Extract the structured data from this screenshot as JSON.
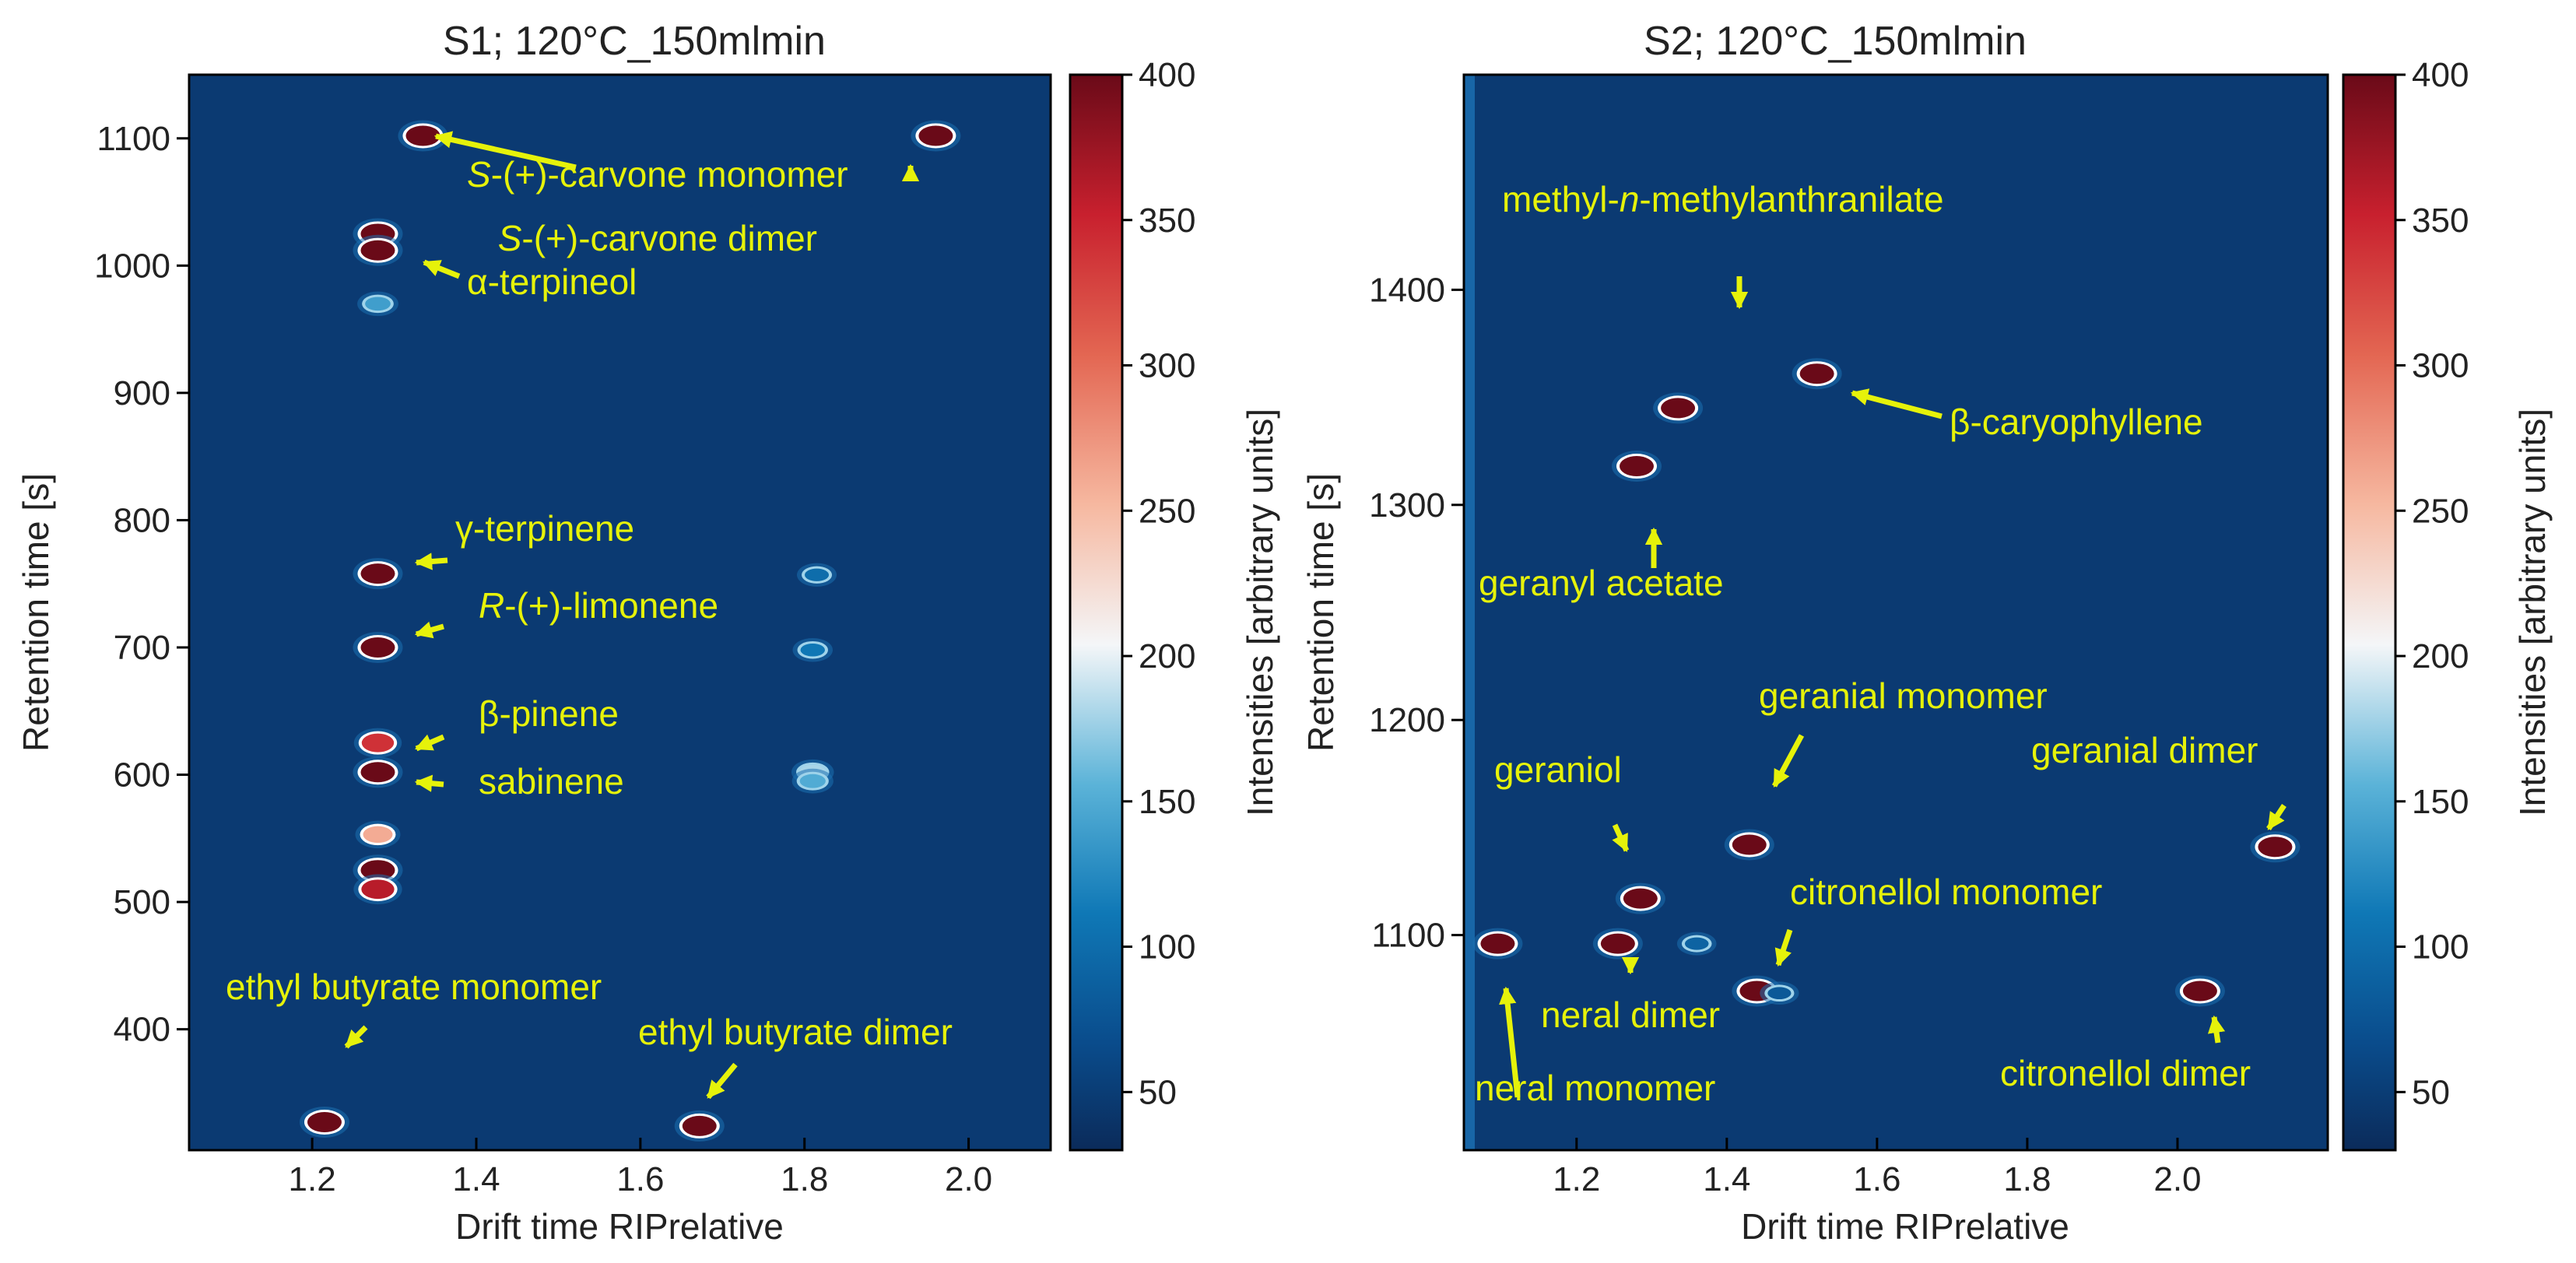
{
  "chart_data": [
    {
      "type": "heatmap",
      "title": "S1; 120°C_150mlmin",
      "xlabel": "Drift time RIPrelative",
      "ylabel": "Retention time [s]",
      "xlim": [
        1.05,
        2.1
      ],
      "ylim": [
        305,
        1150
      ],
      "xticks": [
        "1.2",
        "1.4",
        "1.6",
        "1.8",
        "2.0"
      ],
      "yticks": [
        "400",
        "500",
        "600",
        "700",
        "800",
        "900",
        "1000",
        "1100"
      ],
      "colorbar": {
        "label": "Intensities [arbitrary units]",
        "range": [
          30,
          400
        ],
        "ticks": [
          "50",
          "100",
          "150",
          "200",
          "250",
          "300",
          "350",
          "400"
        ]
      },
      "peaks": [
        {
          "x": 1.335,
          "y": 1102,
          "intensity": 400
        },
        {
          "x": 1.96,
          "y": 1102,
          "intensity": 400
        },
        {
          "x": 1.28,
          "y": 1025,
          "intensity": 400
        },
        {
          "x": 1.28,
          "y": 1012,
          "intensity": 400
        },
        {
          "x": 1.28,
          "y": 970,
          "intensity": 140
        },
        {
          "x": 1.28,
          "y": 758,
          "intensity": 400
        },
        {
          "x": 1.28,
          "y": 700,
          "intensity": 400
        },
        {
          "x": 1.28,
          "y": 625,
          "intensity": 340
        },
        {
          "x": 1.28,
          "y": 602,
          "intensity": 400
        },
        {
          "x": 1.28,
          "y": 553,
          "intensity": 260
        },
        {
          "x": 1.28,
          "y": 525,
          "intensity": 400
        },
        {
          "x": 1.28,
          "y": 510,
          "intensity": 360
        },
        {
          "x": 1.215,
          "y": 327,
          "intensity": 400
        },
        {
          "x": 1.672,
          "y": 324,
          "intensity": 400
        },
        {
          "x": 1.81,
          "y": 602,
          "intensity": 180
        },
        {
          "x": 1.81,
          "y": 595,
          "intensity": 150
        },
        {
          "x": 1.81,
          "y": 698,
          "intensity": 110
        },
        {
          "x": 1.815,
          "y": 757,
          "intensity": 100
        }
      ],
      "annotations": [
        {
          "prefix": "S",
          "text": "-(+)-carvone monomer",
          "x": 1.335,
          "y": 1102
        },
        {
          "prefix": "S",
          "text": "-(+)-carvone dimer",
          "x": 1.96,
          "y": 1102
        },
        {
          "prefix": "",
          "text": "α-terpineol",
          "x": 1.28,
          "y": 1012
        },
        {
          "prefix": "",
          "text": "γ-terpinene",
          "x": 1.28,
          "y": 758
        },
        {
          "prefix": "R",
          "text": "-(+)-limonene",
          "x": 1.28,
          "y": 700
        },
        {
          "prefix": "",
          "text": "β-pinene",
          "x": 1.28,
          "y": 625
        },
        {
          "prefix": "",
          "text": "sabinene",
          "x": 1.28,
          "y": 602
        },
        {
          "prefix": "",
          "text": "ethyl butyrate monomer",
          "x": 1.215,
          "y": 327
        },
        {
          "prefix": "",
          "text": "ethyl butyrate dimer",
          "x": 1.672,
          "y": 324
        }
      ]
    },
    {
      "type": "heatmap",
      "title": "S2; 120°C_150mlmin",
      "xlabel": "Drift time RIPrelative",
      "ylabel": "Retention time [s]",
      "xlim": [
        1.05,
        2.2
      ],
      "ylim": [
        1000,
        1500
      ],
      "xticks": [
        "1.2",
        "1.4",
        "1.6",
        "1.8",
        "2.0"
      ],
      "yticks": [
        "1100",
        "1200",
        "1300",
        "1400"
      ],
      "colorbar": {
        "label": "Intensities [arbitrary units]",
        "range": [
          30,
          400
        ],
        "ticks": [
          "50",
          "100",
          "150",
          "200",
          "250",
          "300",
          "350",
          "400"
        ]
      },
      "peaks": [
        {
          "x": 1.52,
          "y": 1361,
          "intensity": 400
        },
        {
          "x": 1.335,
          "y": 1345,
          "intensity": 400
        },
        {
          "x": 1.28,
          "y": 1318,
          "intensity": 400
        },
        {
          "x": 1.43,
          "y": 1142,
          "intensity": 400
        },
        {
          "x": 1.285,
          "y": 1117,
          "intensity": 400
        },
        {
          "x": 1.095,
          "y": 1096,
          "intensity": 400
        },
        {
          "x": 1.255,
          "y": 1096,
          "intensity": 400
        },
        {
          "x": 1.44,
          "y": 1074,
          "intensity": 400
        },
        {
          "x": 2.13,
          "y": 1141,
          "intensity": 400
        },
        {
          "x": 2.03,
          "y": 1074,
          "intensity": 400
        },
        {
          "x": 1.36,
          "y": 1096,
          "intensity": 90
        },
        {
          "x": 1.47,
          "y": 1073,
          "intensity": 80
        }
      ],
      "annotations": [
        {
          "prefix": "",
          "text": "methyl-",
          "italic": "n",
          "suffix": "-methylanthranilate",
          "x": 1.335,
          "y": 1345
        },
        {
          "prefix": "",
          "text": "β-caryophyllene",
          "x": 1.52,
          "y": 1361
        },
        {
          "prefix": "",
          "text": "geranyl acetate",
          "x": 1.28,
          "y": 1318
        },
        {
          "prefix": "",
          "text": "geranial monomer",
          "x": 1.43,
          "y": 1142
        },
        {
          "prefix": "",
          "text": "geraniol",
          "x": 1.285,
          "y": 1117
        },
        {
          "prefix": "",
          "text": "geranial dimer",
          "x": 2.13,
          "y": 1141
        },
        {
          "prefix": "",
          "text": "citronellol monomer",
          "x": 1.44,
          "y": 1074
        },
        {
          "prefix": "",
          "text": "neral dimer",
          "x": 1.255,
          "y": 1096
        },
        {
          "prefix": "",
          "text": "neral monomer",
          "x": 1.095,
          "y": 1096
        },
        {
          "prefix": "",
          "text": "citronellol dimer",
          "x": 2.03,
          "y": 1074
        }
      ]
    }
  ],
  "colors": {
    "background": "#0b3a72",
    "accent": "#e6f20a",
    "peak": "#8b0a14",
    "halo": "#ffffff",
    "low_blue": "#1b6fb0"
  }
}
